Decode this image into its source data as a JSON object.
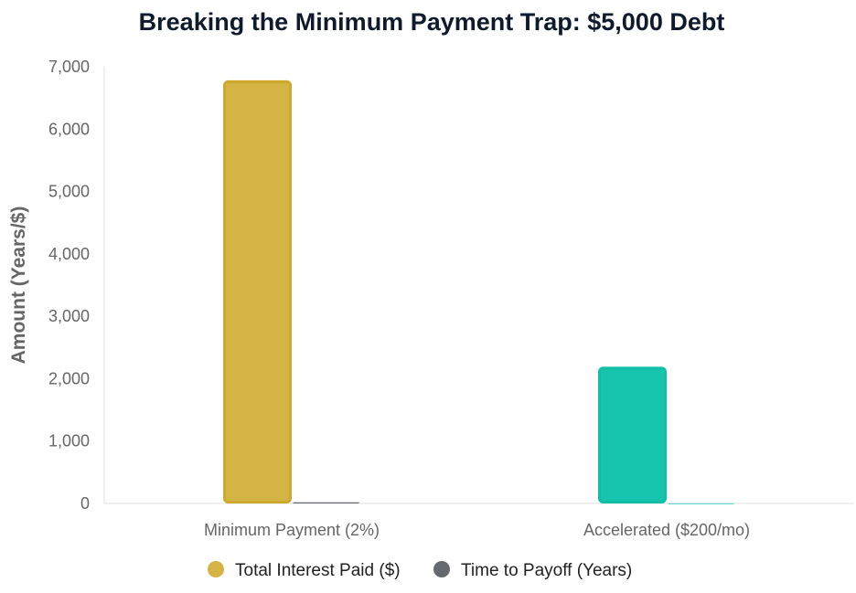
{
  "chart_data": {
    "type": "bar",
    "title": "Breaking the Minimum Payment Trap: $5,000 Debt",
    "xlabel": "",
    "ylabel": "Amount (Years/$)",
    "ylim": [
      0,
      7000
    ],
    "yticks": [
      "0",
      "1,000",
      "2,000",
      "3,000",
      "4,000",
      "5,000",
      "6,000",
      "7,000"
    ],
    "ytick_values": [
      0,
      1000,
      2000,
      3000,
      4000,
      5000,
      6000,
      7000
    ],
    "categories": [
      "Minimum Payment (2%)",
      "Accelerated ($200/mo)"
    ],
    "series": [
      {
        "name": "Total Interest Paid ($)",
        "values": [
          6760,
          2170
        ],
        "colors": [
          "#d4b444",
          "#17c4ae"
        ],
        "border_colors": [
          "#cfa92e",
          "#10bfa5"
        ]
      },
      {
        "name": "Time to Payoff (Years)",
        "values": [
          18,
          2.2
        ],
        "colors": [
          "#666870",
          "#17c4ae"
        ]
      }
    ],
    "legend_position": "bottom",
    "legend_colors": [
      "#d4b444",
      "#666870"
    ],
    "grid": false
  }
}
